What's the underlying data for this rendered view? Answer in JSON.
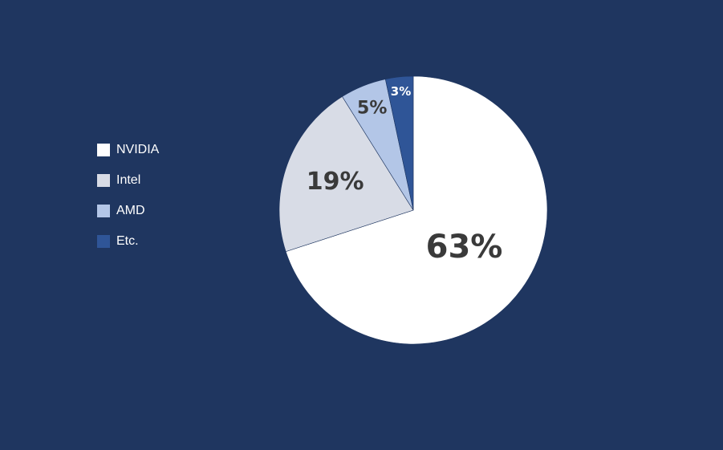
{
  "chart_data": {
    "type": "pie",
    "title": "",
    "start_angle_deg": 0,
    "direction": "clockwise",
    "legend_position": "left",
    "slices": [
      {
        "name": "NVIDIA",
        "value": 63,
        "label": "63%",
        "color": "#ffffff",
        "label_color": "#3a3a3a"
      },
      {
        "name": "Intel",
        "value": 19,
        "label": "19%",
        "color": "#d8dce6",
        "label_color": "#3a3a3a"
      },
      {
        "name": "AMD",
        "value": 5,
        "label": "5%",
        "color": "#b3c6e7",
        "label_color": "#3a3a3a"
      },
      {
        "name": "Etc.",
        "value": 3,
        "label": "3%",
        "color": "#2f5597",
        "label_color": "#ffffff"
      }
    ]
  },
  "legend": {
    "items": [
      {
        "label": "NVIDIA",
        "color": "#ffffff"
      },
      {
        "label": "Intel",
        "color": "#d8dce6"
      },
      {
        "label": "AMD",
        "color": "#b3c6e7"
      },
      {
        "label": "Etc.",
        "color": "#2f5597"
      }
    ]
  }
}
